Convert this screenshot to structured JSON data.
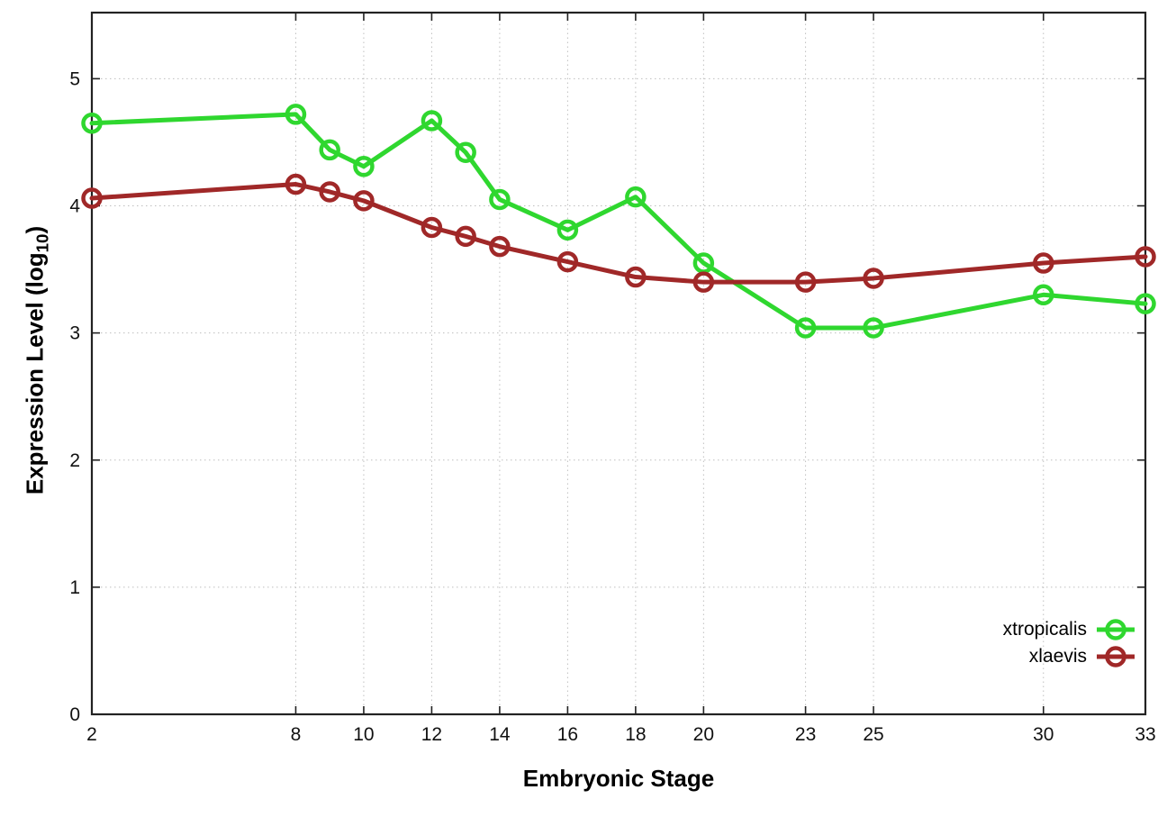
{
  "chart_data": {
    "type": "line",
    "title": "",
    "xlabel": "Embryonic Stage",
    "ylabel": {
      "main": "Expression Level (log",
      "sub": "10",
      "end": ")"
    },
    "x_ticks": [
      2,
      8,
      10,
      12,
      14,
      16,
      18,
      20,
      23,
      25,
      30,
      33
    ],
    "y_ticks": [
      0,
      1,
      2,
      3,
      4,
      5
    ],
    "xlim": [
      2,
      33
    ],
    "ylim": [
      0,
      5.52
    ],
    "grid": true,
    "legend_position": "inside-bottom-right",
    "x": [
      2,
      8,
      9,
      10,
      12,
      13,
      14,
      16,
      18,
      20,
      23,
      25,
      30,
      33
    ],
    "series": [
      {
        "name": "xtropicalis",
        "color": "#2fd72f",
        "values": [
          4.65,
          4.72,
          4.44,
          4.31,
          4.67,
          4.42,
          4.05,
          3.81,
          4.07,
          3.55,
          3.04,
          3.04,
          3.3,
          3.23
        ]
      },
      {
        "name": "xlaevis",
        "color": "#a02828",
        "values": [
          4.06,
          4.17,
          4.11,
          4.04,
          3.83,
          3.76,
          3.68,
          3.56,
          3.44,
          3.4,
          3.4,
          3.43,
          3.55,
          3.6
        ]
      }
    ],
    "axis_color": "#222222",
    "grid_color": "#bfbfbf",
    "background_color": "#ffffff"
  }
}
